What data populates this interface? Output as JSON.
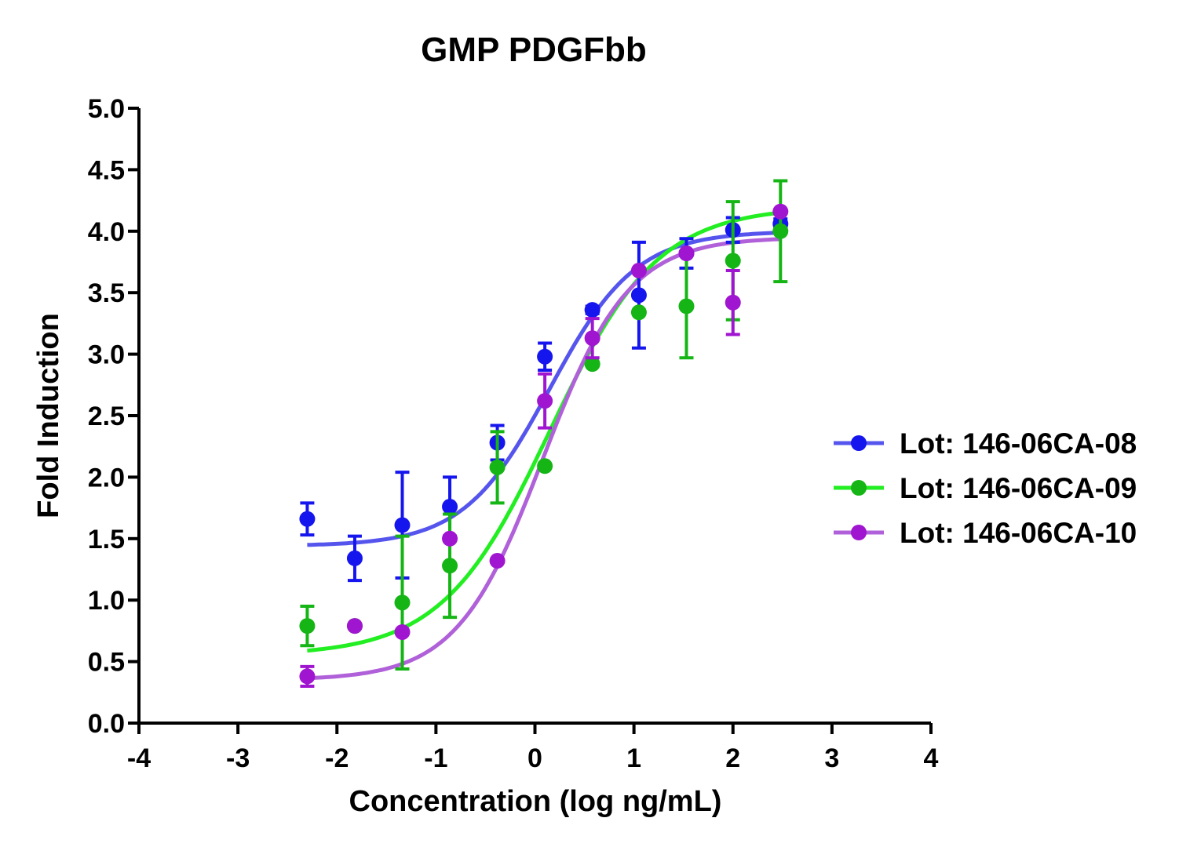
{
  "chart_data": {
    "type": "scatter",
    "title": "GMP PDGFbb",
    "xlabel": "Concentration (log ng/mL)",
    "ylabel": "Fold Induction",
    "xlim": [
      -4,
      4
    ],
    "ylim": [
      0,
      5
    ],
    "xticks": [
      -4,
      -3,
      -2,
      -1,
      0,
      1,
      2,
      3,
      4
    ],
    "xtick_labels": [
      "-4",
      "-3",
      "-2",
      "-1",
      "0",
      "1",
      "2",
      "3",
      "4"
    ],
    "yticks": [
      0,
      0.5,
      1,
      1.5,
      2,
      2.5,
      3,
      3.5,
      4,
      4.5,
      5
    ],
    "ytick_labels": [
      "0.0",
      "0.5",
      "1.0",
      "1.5",
      "2.0",
      "2.5",
      "3.0",
      "3.5",
      "4.0",
      "4.5",
      "5.0"
    ],
    "grid": false,
    "legend_position": "right",
    "series": [
      {
        "name": "Lot: 146-06CA-08",
        "color": "#1515ee",
        "curve_color": "#5555ee",
        "x": [
          -2.3,
          -1.82,
          -1.34,
          -0.86,
          -0.38,
          0.1,
          0.58,
          1.05,
          1.53,
          2.0,
          2.48
        ],
        "y": [
          1.66,
          1.34,
          1.61,
          1.76,
          2.28,
          2.98,
          3.36,
          3.48,
          3.82,
          4.01,
          4.06
        ],
        "yerr": [
          0.13,
          0.18,
          0.43,
          0.24,
          0.14,
          0.11,
          0.03,
          0.43,
          0.12,
          0.1,
          0.04
        ],
        "fit": {
          "bottom": 1.44,
          "top": 4.0,
          "logEC50": 0.15,
          "hill": 1.0
        }
      },
      {
        "name": "Lot: 146-06CA-09",
        "color": "#15b515",
        "curve_color": "#22ee22",
        "x": [
          -2.3,
          -1.82,
          -1.34,
          -0.86,
          -0.38,
          0.1,
          0.58,
          1.05,
          1.53,
          2.0,
          2.48
        ],
        "y": [
          0.79,
          0.79,
          0.98,
          1.28,
          2.08,
          2.09,
          2.92,
          3.34,
          3.39,
          3.76,
          4.0
        ],
        "yerr": [
          0.16,
          0.0,
          0.54,
          0.42,
          0.29,
          0.0,
          0.0,
          0.0,
          0.42,
          0.48,
          0.41
        ],
        "fit": {
          "bottom": 0.55,
          "top": 4.2,
          "logEC50": 0.15,
          "hill": 0.8
        }
      },
      {
        "name": "Lot: 146-06CA-10",
        "color": "#a015d0",
        "curve_color": "#b060d8",
        "x": [
          -2.3,
          -1.82,
          -1.34,
          -0.86,
          -0.38,
          0.1,
          0.58,
          1.05,
          1.53,
          2.0,
          2.48
        ],
        "y": [
          0.38,
          0.79,
          0.74,
          1.5,
          1.32,
          2.62,
          3.13,
          3.68,
          3.82,
          3.42,
          4.16
        ],
        "yerr": [
          0.08,
          0.0,
          0.0,
          0.0,
          0.0,
          0.22,
          0.16,
          0.0,
          0.0,
          0.26,
          0.0
        ],
        "fit": {
          "bottom": 0.35,
          "top": 3.95,
          "logEC50": 0.08,
          "hill": 1.0
        }
      }
    ]
  }
}
